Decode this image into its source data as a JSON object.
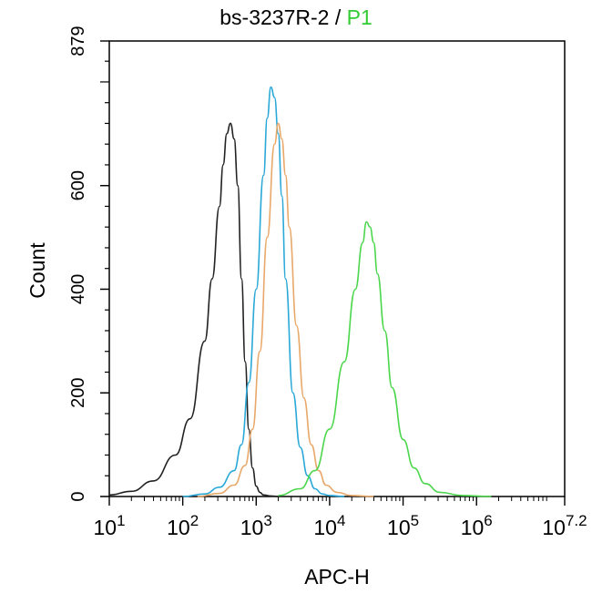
{
  "chart_data": {
    "type": "line",
    "title": "bs-3237R-2 /",
    "gate": "P1",
    "xlabel": "APC-H",
    "ylabel": "Count",
    "x_scale": "log10",
    "xlim": [
      1,
      7.2
    ],
    "ylim": [
      0,
      879
    ],
    "x_ticks": [
      {
        "exp": 1,
        "label_base": "10",
        "label_exp": "1"
      },
      {
        "exp": 2,
        "label_base": "10",
        "label_exp": "2"
      },
      {
        "exp": 3,
        "label_base": "10",
        "label_exp": "3"
      },
      {
        "exp": 4,
        "label_base": "10",
        "label_exp": "4"
      },
      {
        "exp": 5,
        "label_base": "10",
        "label_exp": "5"
      },
      {
        "exp": 6,
        "label_base": "10",
        "label_exp": "6"
      },
      {
        "exp": 7.2,
        "label_base": "10",
        "label_exp": "7.2"
      }
    ],
    "y_ticks": [
      {
        "value": 0,
        "label": "0"
      },
      {
        "value": 200,
        "label": "200"
      },
      {
        "value": 400,
        "label": "400"
      },
      {
        "value": 600,
        "label": "600"
      },
      {
        "value": 879,
        "label": "879"
      }
    ],
    "series": [
      {
        "color": "#222222",
        "x": [
          1.0,
          1.3,
          1.6,
          1.9,
          2.1,
          2.3,
          2.4,
          2.5,
          2.55,
          2.6,
          2.65,
          2.7,
          2.75,
          2.8,
          2.85,
          2.9,
          2.95,
          3.0,
          3.05,
          3.1,
          3.2,
          3.3
        ],
        "y": [
          3,
          10,
          30,
          80,
          150,
          300,
          420,
          560,
          640,
          700,
          720,
          690,
          600,
          420,
          260,
          130,
          55,
          20,
          8,
          3,
          1,
          0
        ]
      },
      {
        "color": "#2aa8d8",
        "x": [
          2.0,
          2.3,
          2.5,
          2.7,
          2.8,
          2.9,
          3.0,
          3.1,
          3.15,
          3.2,
          3.25,
          3.3,
          3.35,
          3.4,
          3.5,
          3.6,
          3.7,
          3.8,
          3.9,
          4.0,
          4.2
        ],
        "y": [
          0,
          5,
          18,
          50,
          100,
          220,
          400,
          620,
          730,
          790,
          770,
          700,
          580,
          420,
          200,
          95,
          40,
          15,
          5,
          2,
          0
        ]
      },
      {
        "color": "#e8a86a",
        "x": [
          2.2,
          2.5,
          2.7,
          2.85,
          2.95,
          3.05,
          3.15,
          3.25,
          3.3,
          3.35,
          3.4,
          3.45,
          3.55,
          3.65,
          3.75,
          3.85,
          3.95,
          4.1,
          4.3,
          4.6
        ],
        "y": [
          0,
          6,
          22,
          60,
          130,
          280,
          500,
          680,
          720,
          690,
          620,
          520,
          330,
          190,
          100,
          50,
          22,
          8,
          2,
          0
        ]
      },
      {
        "color": "#4cd64c",
        "x": [
          3.3,
          3.6,
          3.8,
          4.0,
          4.2,
          4.35,
          4.45,
          4.5,
          4.55,
          4.6,
          4.65,
          4.75,
          4.85,
          5.0,
          5.15,
          5.3,
          5.5,
          5.8,
          6.2
        ],
        "y": [
          2,
          15,
          50,
          130,
          260,
          400,
          490,
          530,
          520,
          490,
          430,
          320,
          210,
          110,
          55,
          25,
          8,
          2,
          0
        ]
      }
    ]
  }
}
